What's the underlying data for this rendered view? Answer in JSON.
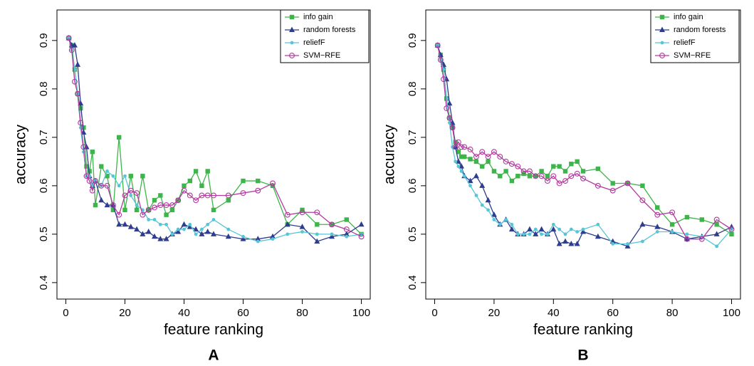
{
  "chart_data": [
    {
      "type": "line",
      "label": "A",
      "xlabel": "feature ranking",
      "ylabel": "accuracy",
      "xlim": [
        -3,
        103
      ],
      "ylim": [
        0.366,
        0.963
      ],
      "xticks": [
        0,
        20,
        40,
        60,
        80,
        100
      ],
      "yticks": [
        0.4,
        0.5,
        0.6,
        0.7,
        0.8,
        0.9
      ],
      "legend": "top-right",
      "x": [
        1,
        2,
        3,
        4,
        5,
        6,
        7,
        8,
        9,
        10,
        12,
        14,
        16,
        18,
        20,
        22,
        24,
        26,
        28,
        30,
        32,
        34,
        36,
        38,
        40,
        42,
        44,
        46,
        48,
        50,
        55,
        60,
        65,
        70,
        75,
        80,
        85,
        90,
        95,
        100
      ],
      "series": [
        {
          "name": "info gain",
          "color": "#3db54a",
          "marker": "square",
          "values": [
            0.905,
            0.89,
            0.84,
            0.79,
            0.76,
            0.72,
            0.64,
            0.63,
            0.67,
            0.56,
            0.64,
            0.62,
            0.55,
            0.7,
            0.55,
            0.62,
            0.55,
            0.62,
            0.55,
            0.57,
            0.58,
            0.54,
            0.55,
            0.57,
            0.6,
            0.61,
            0.63,
            0.6,
            0.63,
            0.55,
            0.57,
            0.61,
            0.61,
            0.6,
            0.52,
            0.55,
            0.52,
            0.52,
            0.53,
            0.5
          ]
        },
        {
          "name": "random forests",
          "color": "#2e3d8f",
          "marker": "triangle",
          "values": [
            0.905,
            0.89,
            0.89,
            0.85,
            0.77,
            0.71,
            0.68,
            0.62,
            0.6,
            0.61,
            0.57,
            0.56,
            0.56,
            0.52,
            0.52,
            0.515,
            0.51,
            0.5,
            0.505,
            0.495,
            0.49,
            0.49,
            0.5,
            0.505,
            0.52,
            0.515,
            0.51,
            0.5,
            0.505,
            0.5,
            0.495,
            0.49,
            0.49,
            0.495,
            0.52,
            0.515,
            0.485,
            0.495,
            0.5,
            0.52
          ]
        },
        {
          "name": "reliefF",
          "color": "#56c6d6",
          "marker": "dot",
          "values": [
            0.905,
            0.88,
            0.84,
            0.79,
            0.72,
            0.67,
            0.62,
            0.62,
            0.6,
            0.61,
            0.6,
            0.63,
            0.62,
            0.6,
            0.62,
            0.58,
            0.56,
            0.55,
            0.53,
            0.53,
            0.52,
            0.52,
            0.5,
            0.51,
            0.51,
            0.52,
            0.5,
            0.51,
            0.52,
            0.53,
            0.51,
            0.495,
            0.485,
            0.49,
            0.5,
            0.505,
            0.5,
            0.5,
            0.495,
            0.5
          ]
        },
        {
          "name": "SVM−RFE",
          "color": "#b23a9e",
          "marker": "circle",
          "values": [
            0.905,
            0.88,
            0.815,
            0.79,
            0.73,
            0.68,
            0.62,
            0.61,
            0.59,
            0.61,
            0.6,
            0.6,
            0.56,
            0.54,
            0.58,
            0.59,
            0.585,
            0.54,
            0.55,
            0.555,
            0.56,
            0.56,
            0.56,
            0.57,
            0.59,
            0.58,
            0.57,
            0.58,
            0.58,
            0.58,
            0.58,
            0.585,
            0.59,
            0.605,
            0.54,
            0.545,
            0.545,
            0.52,
            0.51,
            0.495
          ]
        }
      ]
    },
    {
      "type": "line",
      "label": "B",
      "xlabel": "feature ranking",
      "ylabel": "accuracy",
      "xlim": [
        -3,
        103
      ],
      "ylim": [
        0.366,
        0.963
      ],
      "xticks": [
        0,
        20,
        40,
        60,
        80,
        100
      ],
      "yticks": [
        0.4,
        0.5,
        0.6,
        0.7,
        0.8,
        0.9
      ],
      "legend": "top-right",
      "x": [
        1,
        2,
        3,
        4,
        5,
        6,
        7,
        8,
        9,
        10,
        12,
        14,
        16,
        18,
        20,
        22,
        24,
        26,
        28,
        30,
        32,
        34,
        36,
        38,
        40,
        42,
        44,
        46,
        48,
        50,
        55,
        60,
        65,
        70,
        75,
        80,
        85,
        90,
        95,
        100
      ],
      "series": [
        {
          "name": "info gain",
          "color": "#3db54a",
          "marker": "square",
          "values": [
            0.89,
            0.87,
            0.84,
            0.78,
            0.74,
            0.72,
            0.69,
            0.67,
            0.66,
            0.66,
            0.655,
            0.65,
            0.64,
            0.65,
            0.63,
            0.62,
            0.63,
            0.61,
            0.62,
            0.625,
            0.62,
            0.62,
            0.63,
            0.62,
            0.64,
            0.64,
            0.63,
            0.645,
            0.65,
            0.63,
            0.635,
            0.605,
            0.605,
            0.6,
            0.555,
            0.52,
            0.535,
            0.53,
            0.52,
            0.5
          ]
        },
        {
          "name": "random forests",
          "color": "#2e3d8f",
          "marker": "triangle",
          "values": [
            0.89,
            0.87,
            0.85,
            0.82,
            0.77,
            0.73,
            0.68,
            0.65,
            0.64,
            0.62,
            0.61,
            0.62,
            0.6,
            0.57,
            0.54,
            0.52,
            0.53,
            0.51,
            0.5,
            0.5,
            0.51,
            0.5,
            0.51,
            0.5,
            0.51,
            0.48,
            0.485,
            0.48,
            0.48,
            0.505,
            0.495,
            0.485,
            0.475,
            0.52,
            0.515,
            0.505,
            0.49,
            0.495,
            0.5,
            0.515
          ]
        },
        {
          "name": "reliefF",
          "color": "#56c6d6",
          "marker": "dot",
          "values": [
            0.89,
            0.86,
            0.84,
            0.78,
            0.73,
            0.68,
            0.65,
            0.64,
            0.63,
            0.62,
            0.6,
            0.58,
            0.56,
            0.55,
            0.53,
            0.52,
            0.53,
            0.52,
            0.5,
            0.5,
            0.5,
            0.51,
            0.5,
            0.5,
            0.52,
            0.51,
            0.5,
            0.51,
            0.505,
            0.51,
            0.52,
            0.48,
            0.48,
            0.485,
            0.505,
            0.505,
            0.5,
            0.495,
            0.475,
            0.51
          ]
        },
        {
          "name": "SVM−RFE",
          "color": "#b23a9e",
          "marker": "circle",
          "values": [
            0.89,
            0.86,
            0.82,
            0.76,
            0.74,
            0.72,
            0.68,
            0.69,
            0.68,
            0.68,
            0.675,
            0.66,
            0.67,
            0.66,
            0.67,
            0.66,
            0.65,
            0.645,
            0.64,
            0.63,
            0.63,
            0.62,
            0.62,
            0.61,
            0.62,
            0.605,
            0.61,
            0.62,
            0.625,
            0.615,
            0.6,
            0.59,
            0.605,
            0.57,
            0.54,
            0.545,
            0.49,
            0.49,
            0.53,
            0.51
          ]
        }
      ]
    }
  ]
}
